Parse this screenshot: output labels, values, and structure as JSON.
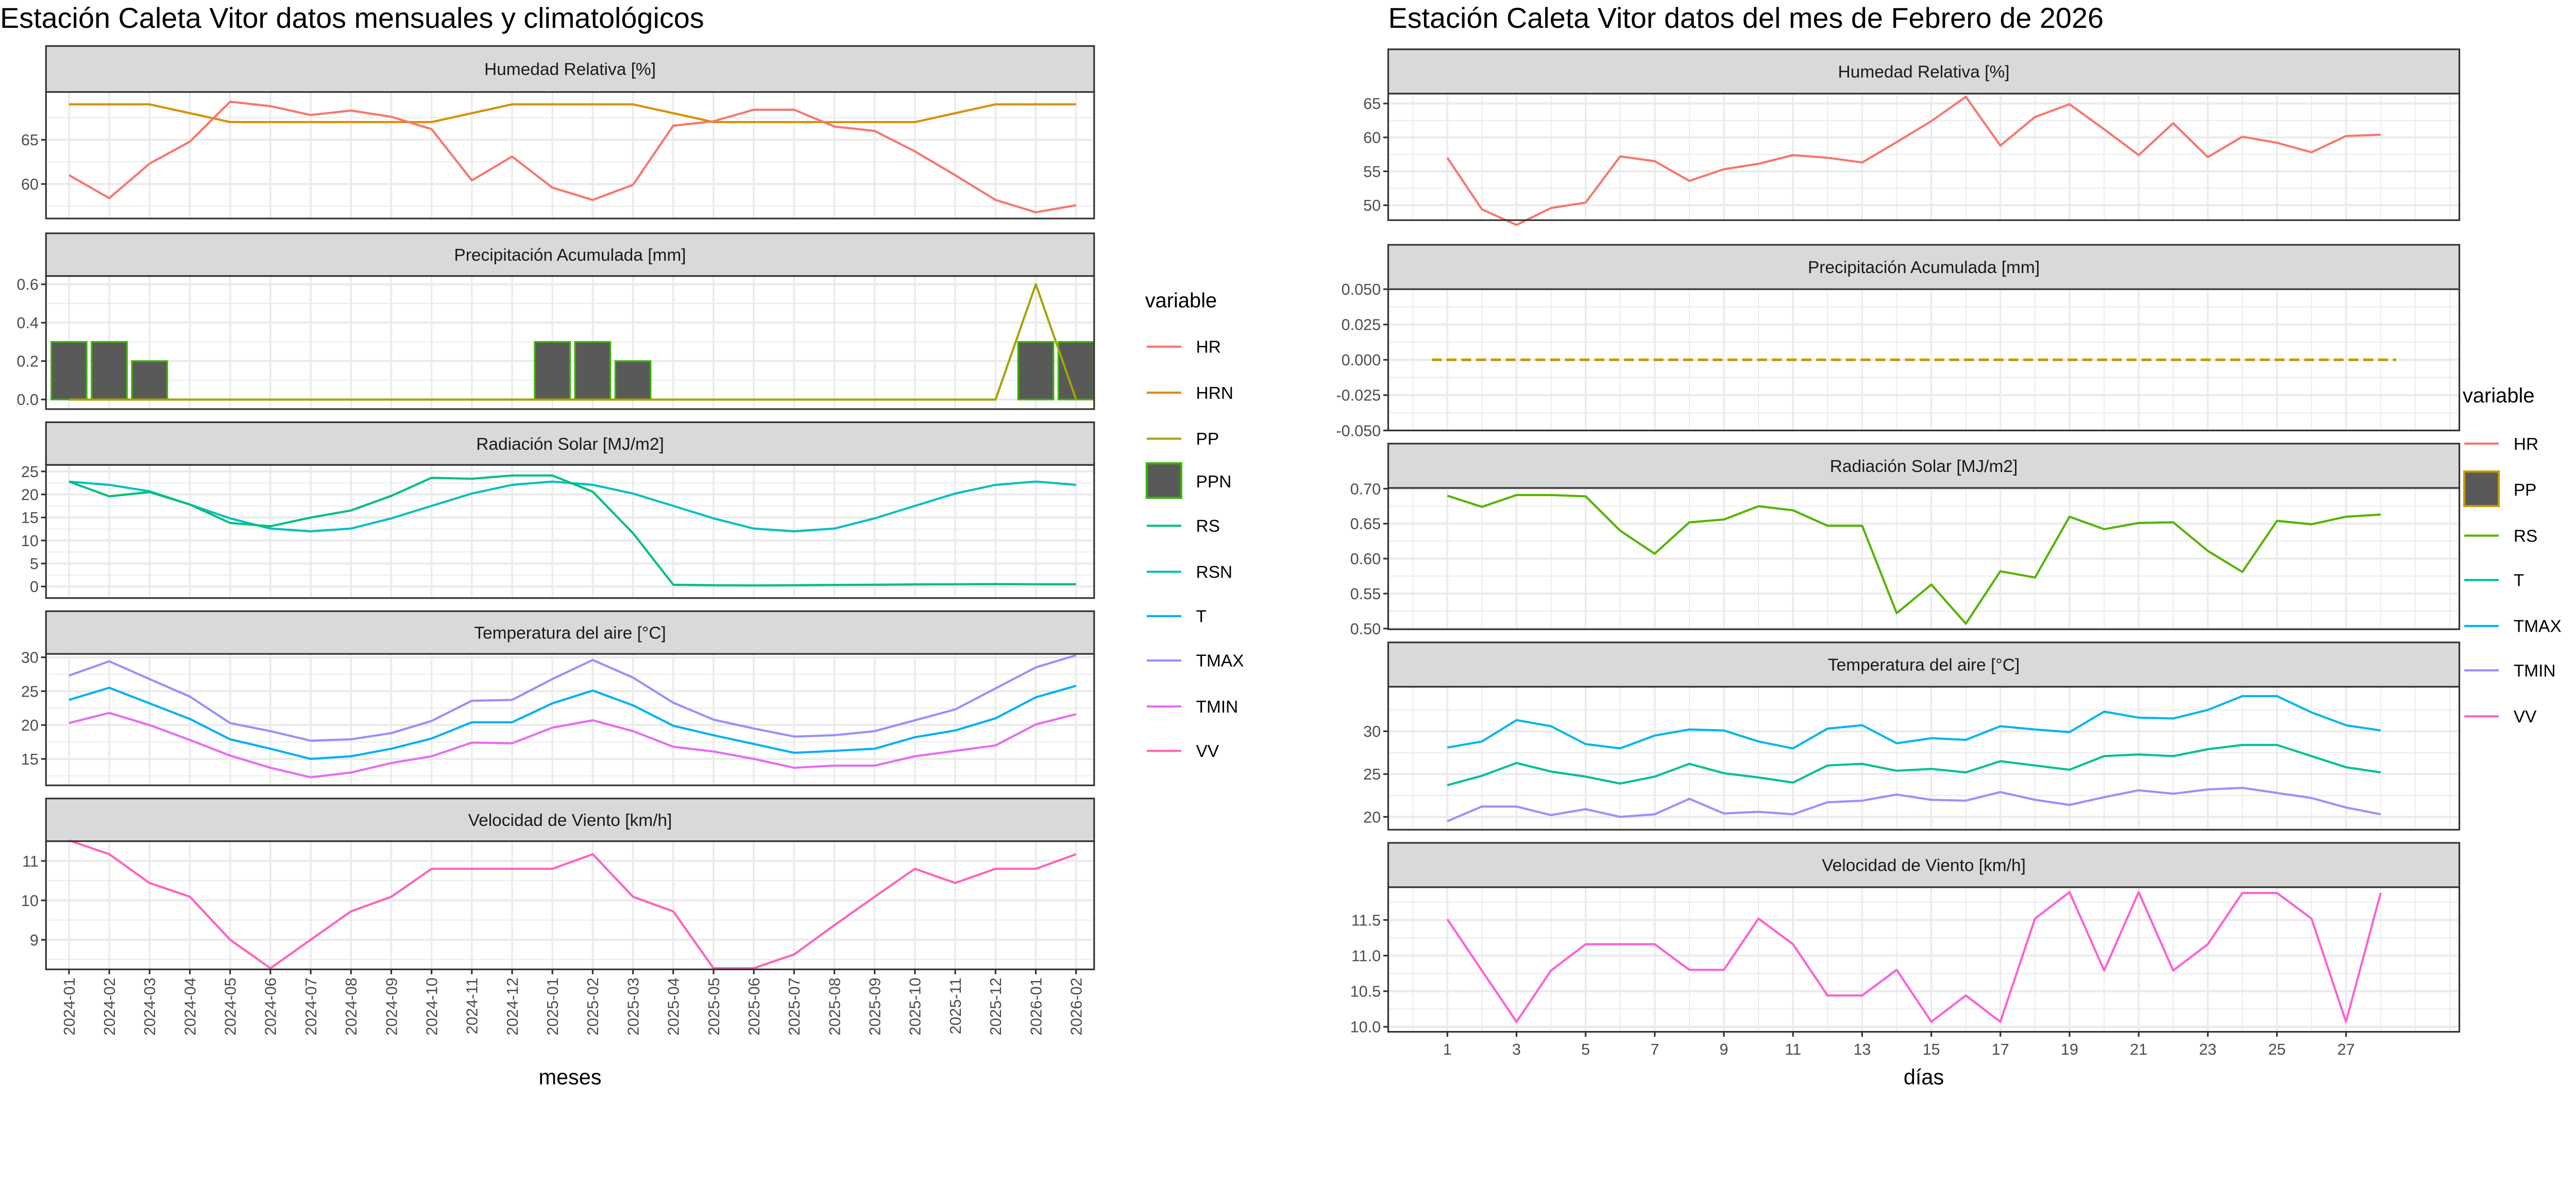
{
  "chart_data": [
    {
      "type": "line",
      "title": "Estación Caleta Vitor datos mensuales y climatológicos",
      "xlabel": "meses",
      "x": [
        "2024-01",
        "2024-02",
        "2024-03",
        "2024-04",
        "2024-05",
        "2024-06",
        "2024-07",
        "2024-08",
        "2024-09",
        "2024-10",
        "2024-11",
        "2024-12",
        "2025-01",
        "2025-02",
        "2025-03",
        "2025-04",
        "2025-05",
        "2025-06",
        "2025-07",
        "2025-08",
        "2025-09",
        "2025-10",
        "2025-11",
        "2025-12",
        "2026-01",
        "2026-02"
      ],
      "grid": true,
      "legend": {
        "title": "variable",
        "placement": "right",
        "entries": [
          {
            "name": "HR",
            "color": "#F8766D",
            "key": "line"
          },
          {
            "name": "HRN",
            "color": "#D89000",
            "key": "line"
          },
          {
            "name": "PP",
            "color": "#A3A500",
            "key": "line"
          },
          {
            "name": "PPN",
            "color": "#39B600",
            "key": "box"
          },
          {
            "name": "RS",
            "color": "#00BF7D",
            "key": "line"
          },
          {
            "name": "RSN",
            "color": "#00BFC4",
            "key": "line"
          },
          {
            "name": "T",
            "color": "#00B0F6",
            "key": "line"
          },
          {
            "name": "TMAX",
            "color": "#9590FF",
            "key": "line"
          },
          {
            "name": "TMIN",
            "color": "#E76BF3",
            "key": "line"
          },
          {
            "name": "VV",
            "color": "#FF62BC",
            "key": "line"
          }
        ]
      },
      "panels": [
        {
          "title": "Humedad Relativa [%]",
          "ylim": [
            56.1,
            70.4
          ],
          "yticks": [
            "60",
            "65"
          ],
          "series": [
            {
              "name": "HRN",
              "color": "#D89000",
              "type": "line",
              "values": [
                69,
                69,
                69,
                68,
                67,
                67,
                67,
                67,
                67,
                67,
                68,
                69,
                69,
                69,
                69,
                68,
                67,
                67,
                67,
                67,
                67,
                67,
                68,
                69,
                69,
                69
              ]
            },
            {
              "name": "HR",
              "color": "#F8766D",
              "type": "line",
              "values": [
                61.0,
                58.4,
                62.3,
                64.8,
                69.3,
                68.8,
                67.8,
                68.3,
                67.6,
                66.2,
                60.4,
                63.1,
                59.6,
                58.2,
                59.9,
                66.6,
                67.1,
                68.4,
                68.4,
                66.5,
                66.0,
                63.7,
                61.0,
                58.2,
                56.8,
                57.6
              ]
            }
          ]
        },
        {
          "title": "Precipitación Acumulada [mm]",
          "ylim": [
            -0.05,
            0.643
          ],
          "yticks": [
            "0.0",
            "0.2",
            "0.4",
            "0.6"
          ],
          "series": [
            {
              "name": "PPN",
              "color": "#39B600",
              "fill": "#595959",
              "type": "bar",
              "values": [
                0.3,
                0.3,
                0.2,
                0,
                0,
                0,
                0,
                0,
                0,
                0,
                0,
                0,
                0.3,
                0.3,
                0.2,
                0,
                0,
                0,
                0,
                0,
                0,
                0,
                0,
                0,
                0.3,
                0.3
              ]
            },
            {
              "name": "PP",
              "color": "#A3A500",
              "type": "line",
              "values": [
                0,
                0,
                0,
                0,
                0,
                0,
                0,
                0,
                0,
                0,
                0,
                0,
                0,
                0,
                0,
                0,
                0,
                0,
                0,
                0,
                0,
                0,
                0,
                0,
                0.6,
                0
              ]
            }
          ]
        },
        {
          "title": "Radiación Solar [MJ/m2]",
          "ylim": [
            -2.5,
            26.4
          ],
          "yticks": [
            "0",
            "5",
            "10",
            "15",
            "20",
            "25"
          ],
          "series": [
            {
              "name": "RSN",
              "color": "#00BFC4",
              "type": "line",
              "values": [
                22.8,
                22.1,
                20.7,
                17.8,
                14.8,
                12.6,
                12.0,
                12.6,
                14.8,
                17.5,
                20.2,
                22.1,
                22.8,
                22.1,
                20.2,
                17.5,
                14.8,
                12.6,
                12.0,
                12.6,
                14.8,
                17.5,
                20.2,
                22.1,
                22.8,
                22.1
              ]
            },
            {
              "name": "RS",
              "color": "#00BF7D",
              "type": "line",
              "values": [
                22.8,
                19.6,
                20.5,
                17.8,
                13.8,
                13.1,
                15.0,
                16.5,
                19.7,
                23.6,
                23.4,
                24.1,
                24.1,
                20.6,
                11.6,
                0.4,
                0.3,
                0.25,
                0.3,
                0.35,
                0.4,
                0.45,
                0.5,
                0.55,
                0.5,
                0.5
              ]
            }
          ]
        },
        {
          "title": "Temperatura del aire [°C]",
          "ylim": [
            11.1,
            30.5
          ],
          "yticks": [
            "15",
            "20",
            "25",
            "30"
          ],
          "series": [
            {
              "name": "TMAX",
              "color": "#9590FF",
              "type": "line",
              "values": [
                27.3,
                29.4,
                26.8,
                24.2,
                20.3,
                19.1,
                17.7,
                17.9,
                18.8,
                20.6,
                23.6,
                23.7,
                26.8,
                29.6,
                27.0,
                23.3,
                20.8,
                19.5,
                18.3,
                18.5,
                19.1,
                20.7,
                22.3,
                25.4,
                28.5,
                30.3
              ]
            },
            {
              "name": "T",
              "color": "#00B0F6",
              "type": "line",
              "values": [
                23.7,
                25.5,
                23.2,
                20.9,
                17.9,
                16.5,
                15.0,
                15.4,
                16.5,
                18.0,
                20.4,
                20.4,
                23.2,
                25.1,
                22.9,
                19.9,
                18.5,
                17.2,
                15.9,
                16.2,
                16.5,
                18.2,
                19.2,
                21.0,
                24.1,
                25.8
              ]
            },
            {
              "name": "TMIN",
              "color": "#E76BF3",
              "type": "line",
              "values": [
                20.3,
                21.8,
                20.0,
                17.8,
                15.5,
                13.7,
                12.3,
                13.0,
                14.4,
                15.4,
                17.4,
                17.3,
                19.6,
                20.7,
                19.1,
                16.8,
                16.1,
                15.0,
                13.7,
                14.0,
                14.0,
                15.4,
                16.2,
                17.0,
                20.1,
                21.6
              ]
            }
          ]
        },
        {
          "title": "Velocidad de Viento [km/h]",
          "ylim": [
            8.25,
            11.5
          ],
          "yticks": [
            "9",
            "10",
            "11"
          ],
          "series": [
            {
              "name": "VV",
              "color": "#FF62BC",
              "type": "line",
              "values": [
                11.52,
                11.17,
                10.44,
                10.09,
                9.0,
                8.28,
                9.0,
                9.72,
                10.09,
                10.8,
                10.8,
                10.8,
                10.8,
                11.17,
                10.09,
                9.72,
                8.28,
                8.28,
                8.63,
                9.37,
                10.09,
                10.8,
                10.44,
                10.8,
                10.8,
                11.17
              ]
            }
          ]
        }
      ]
    },
    {
      "type": "line",
      "title": "Estación Caleta Vitor datos del mes de Febrero de 2026",
      "xlabel": "días",
      "x": [
        1,
        2,
        3,
        4,
        5,
        6,
        7,
        8,
        9,
        10,
        11,
        12,
        13,
        14,
        15,
        16,
        17,
        18,
        19,
        20,
        21,
        22,
        23,
        24,
        25,
        26,
        27,
        28
      ],
      "xticks": [
        "1",
        "3",
        "5",
        "7",
        "9",
        "11",
        "13",
        "15",
        "17",
        "19",
        "21",
        "23",
        "25",
        "27"
      ],
      "xlim": [
        -0.7,
        30.3
      ],
      "grid": true,
      "legend": {
        "title": "variable",
        "placement": "right",
        "entries": [
          {
            "name": "HR",
            "color": "#F8766D",
            "key": "line"
          },
          {
            "name": "PP",
            "color": "#C49A00",
            "key": "box"
          },
          {
            "name": "RS",
            "color": "#53B400",
            "key": "line"
          },
          {
            "name": "T",
            "color": "#00C094",
            "key": "line"
          },
          {
            "name": "TMAX",
            "color": "#00B6EB",
            "key": "line"
          },
          {
            "name": "TMIN",
            "color": "#A58AFF",
            "key": "line"
          },
          {
            "name": "VV",
            "color": "#FB61D7",
            "key": "line"
          }
        ]
      },
      "panels": [
        {
          "title": "Humedad Relativa [%]",
          "ylim": [
            47.8,
            66.45
          ],
          "yticks": [
            "50",
            "55",
            "60",
            "65"
          ],
          "series": [
            {
              "name": "HR",
              "color": "#F8766D",
              "type": "line",
              "values": [
                57.0,
                49.4,
                47.1,
                49.6,
                50.4,
                57.2,
                56.5,
                53.6,
                55.3,
                56.1,
                57.4,
                57.0,
                56.3,
                59.3,
                62.4,
                66.0,
                58.8,
                63.0,
                64.9,
                61.2,
                57.4,
                62.1,
                57.1,
                60.1,
                59.2,
                57.8,
                60.2,
                60.4
              ]
            }
          ]
        },
        {
          "title": "Precipitación Acumulada [mm]",
          "ylim": [
            -0.05,
            0.05
          ],
          "yticks": [
            "-0.050",
            "-0.025",
            "0.000",
            "0.025",
            "0.050"
          ],
          "series": [
            {
              "name": "PP",
              "color": "#C49A00",
              "type": "dashed",
              "values": [
                0,
                0,
                0,
                0,
                0,
                0,
                0,
                0,
                0,
                0,
                0,
                0,
                0,
                0,
                0,
                0,
                0,
                0,
                0,
                0,
                0,
                0,
                0,
                0,
                0,
                0,
                0,
                0
              ]
            }
          ]
        },
        {
          "title": "Radiación Solar [MJ/m2]",
          "ylim": [
            0.499,
            0.701
          ],
          "yticks": [
            "0.50",
            "0.55",
            "0.60",
            "0.65",
            "0.70"
          ],
          "series": [
            {
              "name": "RS",
              "color": "#53B400",
              "type": "line",
              "values": [
                0.69,
                0.674,
                0.691,
                0.691,
                0.689,
                0.64,
                0.607,
                0.652,
                0.656,
                0.675,
                0.669,
                0.647,
                0.647,
                0.522,
                0.563,
                0.507,
                0.582,
                0.573,
                0.66,
                0.642,
                0.651,
                0.652,
                0.611,
                0.581,
                0.654,
                0.649,
                0.66,
                0.663
              ]
            }
          ]
        },
        {
          "title": "Temperatura del aire [°C]",
          "ylim": [
            18.5,
            35.2
          ],
          "yticks": [
            "20",
            "25",
            "30"
          ],
          "series": [
            {
              "name": "TMAX",
              "color": "#00B6EB",
              "type": "line",
              "values": [
                28.1,
                28.8,
                31.3,
                30.6,
                28.5,
                28.0,
                29.5,
                30.2,
                30.1,
                28.8,
                28.0,
                30.3,
                30.7,
                28.6,
                29.2,
                29.0,
                30.6,
                30.2,
                29.9,
                32.3,
                31.6,
                31.5,
                32.5,
                34.1,
                34.1,
                32.2,
                30.7,
                30.1
              ]
            },
            {
              "name": "T",
              "color": "#00C094",
              "type": "line",
              "values": [
                23.7,
                24.8,
                26.3,
                25.3,
                24.7,
                23.9,
                24.7,
                26.2,
                25.1,
                24.6,
                24.0,
                26.0,
                26.2,
                25.4,
                25.6,
                25.2,
                26.5,
                26.0,
                25.5,
                27.1,
                27.3,
                27.1,
                27.9,
                28.4,
                28.4,
                27.1,
                25.8,
                25.2
              ]
            },
            {
              "name": "TMIN",
              "color": "#A58AFF",
              "type": "line",
              "values": [
                19.5,
                21.2,
                21.2,
                20.2,
                20.9,
                20.0,
                20.3,
                22.1,
                20.4,
                20.6,
                20.3,
                21.7,
                21.9,
                22.6,
                22.0,
                21.9,
                22.9,
                22.0,
                21.4,
                22.3,
                23.1,
                22.7,
                23.2,
                23.4,
                22.8,
                22.2,
                21.1,
                20.3
              ]
            }
          ]
        },
        {
          "title": "Velocidad de Viento [km/h]",
          "ylim": [
            9.93,
            11.96
          ],
          "yticks": [
            "10.0",
            "10.5",
            "11.0",
            "11.5"
          ],
          "series": [
            {
              "name": "VV",
              "color": "#FB61D7",
              "type": "line",
              "values": [
                11.51,
                10.79,
                10.07,
                10.79,
                11.16,
                11.16,
                11.16,
                10.8,
                10.8,
                11.52,
                11.16,
                10.44,
                10.44,
                10.8,
                10.07,
                10.44,
                10.07,
                11.52,
                11.89,
                10.79,
                11.89,
                10.79,
                11.16,
                11.88,
                11.88,
                11.52,
                10.07,
                11.88
              ]
            }
          ]
        }
      ]
    }
  ]
}
